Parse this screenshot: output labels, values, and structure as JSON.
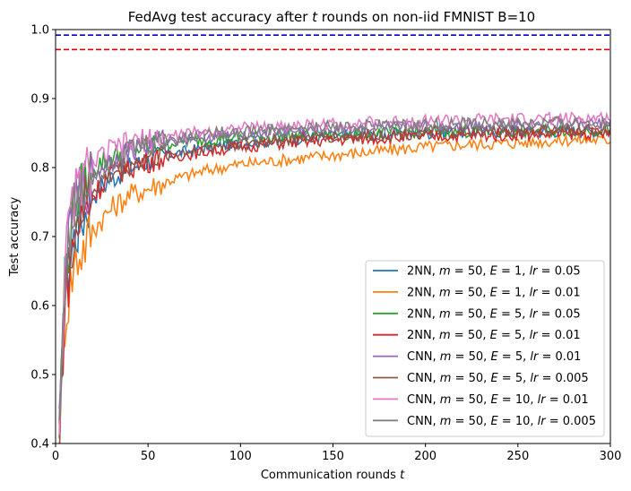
{
  "chart_data": {
    "type": "line",
    "title": "FedAvg test accuracy after t rounds on non-iid FMNIST B=10",
    "xlabel": "Communication rounds t",
    "ylabel": "Test accuracy",
    "xlim": [
      0,
      300
    ],
    "ylim": [
      0.4,
      1.0
    ],
    "xticks": [
      "0",
      "50",
      "100",
      "150",
      "200",
      "250",
      "300"
    ],
    "yticks": [
      "0.4",
      "0.5",
      "0.6",
      "0.7",
      "0.8",
      "0.9",
      "1.0"
    ],
    "grid": false,
    "legend_position": "lower-right",
    "reference_lines": [
      {
        "y": 0.992,
        "color": "#0000cc",
        "style": "dashed"
      },
      {
        "y": 0.971,
        "color": "#dd0000",
        "style": "dashed"
      }
    ],
    "x": [
      2,
      5,
      10,
      20,
      30,
      40,
      50,
      60,
      80,
      100,
      120,
      150,
      180,
      200,
      220,
      250,
      280,
      300
    ],
    "series": [
      {
        "name": "2NN, m = 50, E = 1, lr = 0.05",
        "color": "#1f77b4",
        "values": [
          0.4,
          0.62,
          0.7,
          0.76,
          0.785,
          0.8,
          0.81,
          0.818,
          0.828,
          0.835,
          0.84,
          0.845,
          0.848,
          0.85,
          0.851,
          0.852,
          0.853,
          0.852
        ]
      },
      {
        "name": "2NN, m = 50, E = 1, lr = 0.01",
        "color": "#ff7f0e",
        "values": [
          0.4,
          0.58,
          0.66,
          0.71,
          0.74,
          0.76,
          0.77,
          0.78,
          0.795,
          0.805,
          0.81,
          0.818,
          0.825,
          0.83,
          0.833,
          0.836,
          0.84,
          0.84
        ]
      },
      {
        "name": "2NN, m = 50, E = 5, lr = 0.05",
        "color": "#2ca02c",
        "values": [
          0.42,
          0.65,
          0.74,
          0.8,
          0.815,
          0.825,
          0.83,
          0.835,
          0.84,
          0.843,
          0.845,
          0.848,
          0.85,
          0.851,
          0.852,
          0.853,
          0.854,
          0.855
        ]
      },
      {
        "name": "2NN, m = 50, E = 5, lr = 0.01",
        "color": "#d62728",
        "values": [
          0.42,
          0.6,
          0.7,
          0.76,
          0.79,
          0.8,
          0.81,
          0.815,
          0.823,
          0.83,
          0.835,
          0.84,
          0.843,
          0.845,
          0.846,
          0.848,
          0.849,
          0.85
        ]
      },
      {
        "name": "CNN, m = 50, E = 5, lr = 0.01",
        "color": "#9467bd",
        "values": [
          0.42,
          0.64,
          0.74,
          0.79,
          0.81,
          0.825,
          0.833,
          0.84,
          0.845,
          0.848,
          0.851,
          0.855,
          0.858,
          0.86,
          0.861,
          0.862,
          0.863,
          0.864
        ]
      },
      {
        "name": "CNN, m = 50, E = 5, lr = 0.005",
        "color": "#8c564b",
        "values": [
          0.42,
          0.6,
          0.71,
          0.77,
          0.79,
          0.805,
          0.812,
          0.818,
          0.828,
          0.835,
          0.84,
          0.845,
          0.848,
          0.85,
          0.852,
          0.853,
          0.854,
          0.855
        ]
      },
      {
        "name": "CNN, m = 50, E = 10, lr = 0.01",
        "color": "#e377c2",
        "values": [
          0.43,
          0.66,
          0.76,
          0.805,
          0.825,
          0.835,
          0.84,
          0.845,
          0.852,
          0.857,
          0.86,
          0.863,
          0.866,
          0.868,
          0.869,
          0.87,
          0.871,
          0.872
        ]
      },
      {
        "name": "CNN, m = 50, E = 10, lr = 0.005",
        "color": "#7f7f7f",
        "values": [
          0.43,
          0.64,
          0.74,
          0.79,
          0.812,
          0.825,
          0.833,
          0.84,
          0.848,
          0.853,
          0.856,
          0.859,
          0.861,
          0.862,
          0.863,
          0.864,
          0.865,
          0.866
        ]
      }
    ]
  }
}
